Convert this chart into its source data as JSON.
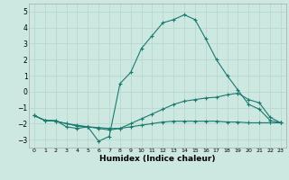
{
  "xlabel": "Humidex (Indice chaleur)",
  "background_color": "#cce8e0",
  "grid_color": "#b8d8d0",
  "line_color": "#1a7a6e",
  "xlim": [
    -0.5,
    23.5
  ],
  "ylim": [
    -3.5,
    5.5
  ],
  "yticks": [
    -3,
    -2,
    -1,
    0,
    1,
    2,
    3,
    4,
    5
  ],
  "xticks": [
    0,
    1,
    2,
    3,
    4,
    5,
    6,
    7,
    8,
    9,
    10,
    11,
    12,
    13,
    14,
    15,
    16,
    17,
    18,
    19,
    20,
    21,
    22,
    23
  ],
  "curve1_x": [
    0,
    1,
    2,
    3,
    4,
    5,
    6,
    7,
    8,
    9,
    10,
    11,
    12,
    13,
    14,
    15,
    16,
    17,
    18,
    19,
    20,
    21,
    22,
    23
  ],
  "curve1_y": [
    -1.5,
    -1.8,
    -1.8,
    -2.2,
    -2.3,
    -2.2,
    -3.1,
    -2.8,
    0.5,
    1.2,
    2.7,
    3.5,
    4.3,
    4.5,
    4.8,
    4.5,
    3.3,
    2.0,
    1.0,
    0.1,
    -0.8,
    -1.1,
    -1.8,
    -1.95
  ],
  "curve2_x": [
    0,
    1,
    2,
    3,
    4,
    5,
    6,
    7,
    8,
    9,
    10,
    11,
    12,
    13,
    14,
    15,
    16,
    17,
    18,
    19,
    20,
    21,
    22,
    23
  ],
  "curve2_y": [
    -1.5,
    -1.8,
    -1.85,
    -2.0,
    -2.15,
    -2.2,
    -2.25,
    -2.3,
    -2.3,
    -2.2,
    -2.1,
    -2.0,
    -1.9,
    -1.85,
    -1.85,
    -1.85,
    -1.85,
    -1.85,
    -1.9,
    -1.9,
    -1.95,
    -1.95,
    -1.95,
    -1.95
  ],
  "curve3_x": [
    0,
    1,
    2,
    3,
    4,
    5,
    6,
    7,
    8,
    9,
    10,
    11,
    12,
    13,
    14,
    15,
    16,
    17,
    18,
    19,
    20,
    21,
    22,
    23
  ],
  "curve3_y": [
    -1.5,
    -1.8,
    -1.85,
    -2.0,
    -2.1,
    -2.2,
    -2.3,
    -2.4,
    -2.3,
    -2.0,
    -1.7,
    -1.4,
    -1.1,
    -0.8,
    -0.6,
    -0.5,
    -0.4,
    -0.35,
    -0.2,
    -0.1,
    -0.5,
    -0.7,
    -1.6,
    -1.95
  ]
}
